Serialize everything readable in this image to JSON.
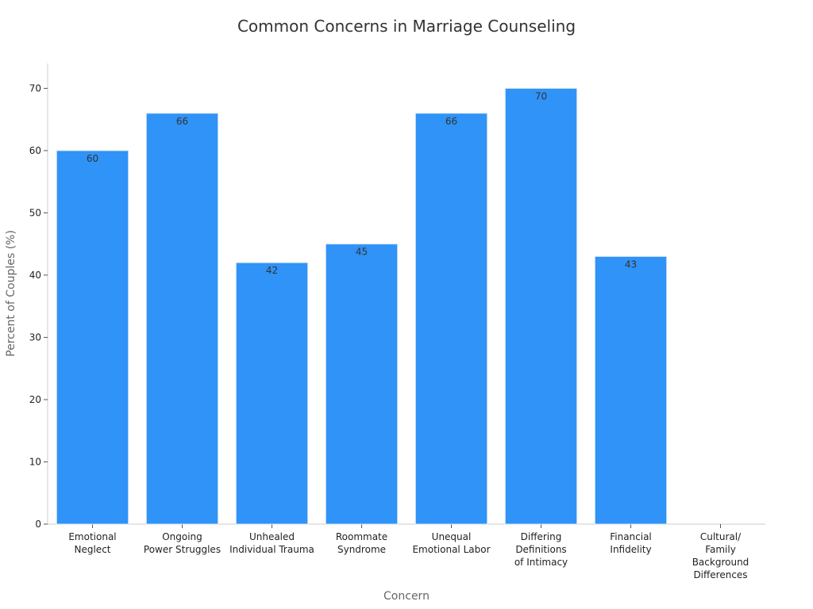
{
  "chart_data": {
    "type": "bar",
    "title": "Common Concerns in Marriage Counseling",
    "xlabel": "Concern",
    "ylabel": "Percent of Couples (%)",
    "ylim": [
      0,
      74
    ],
    "yticks": [
      0,
      10,
      20,
      30,
      40,
      50,
      60,
      70
    ],
    "grid": false,
    "bar_color": "#2f93f7",
    "categories": [
      [
        "Emotional",
        "Neglect"
      ],
      [
        "Ongoing",
        "Power Struggles"
      ],
      [
        "Unhealed",
        "Individual Trauma"
      ],
      [
        "Roommate",
        "Syndrome"
      ],
      [
        "Unequal",
        "Emotional Labor"
      ],
      [
        "Differing",
        "Definitions",
        "of Intimacy"
      ],
      [
        "Financial",
        "Infidelity"
      ],
      [
        "Cultural/",
        "Family",
        "Background",
        "Differences"
      ]
    ],
    "values": [
      60,
      66,
      42,
      45,
      66,
      70,
      43,
      null
    ],
    "data_labels": [
      "60",
      "66",
      "42",
      "45",
      "66",
      "70",
      "43",
      ""
    ]
  }
}
